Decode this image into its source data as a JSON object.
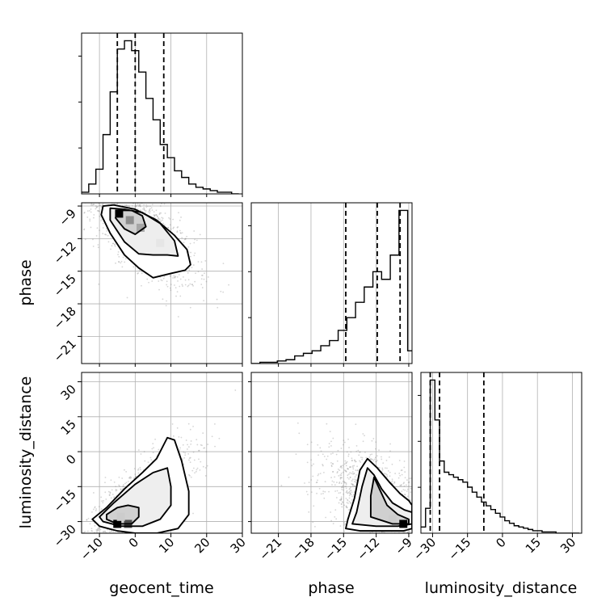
{
  "chart_data": {
    "type": "corner",
    "grid": true,
    "parameters": [
      "geocent_time",
      "phase",
      "luminosity_distance"
    ],
    "xlabels": {
      "geocent_time": "geocent_time",
      "phase": "phase",
      "luminosity_distance": "luminosity_distance"
    },
    "ylabels": {
      "phase": "phase",
      "luminosity_distance": "luminosity_distance"
    },
    "ranges": {
      "geocent_time": [
        -15,
        30
      ],
      "phase": [
        -23.5,
        -8.7
      ],
      "luminosity_distance": [
        -35,
        34
      ]
    },
    "ticks": {
      "geocent_time": {
        "values": [
          -10,
          0,
          10,
          20,
          30
        ],
        "labels": [
          "−10",
          "0",
          "10",
          "20",
          "30"
        ]
      },
      "phase": {
        "values": [
          -21,
          -18,
          -15,
          -12,
          -9
        ],
        "labels": [
          "−21",
          "−18",
          "−15",
          "−12",
          "−9"
        ]
      },
      "luminosity_distance": {
        "values": [
          -30,
          -15,
          0,
          15,
          30
        ],
        "labels": [
          "−30",
          "−15",
          "0",
          "15",
          "30"
        ]
      }
    },
    "quantiles": {
      "geocent_time": [
        -5,
        0,
        8
      ],
      "phase": [
        -14.8,
        -11.9,
        -9.8
      ],
      "luminosity_distance": [
        -31,
        -27,
        -8
      ]
    },
    "histograms": {
      "geocent_time": {
        "edges": [
          -15,
          -13,
          -11,
          -9,
          -7,
          -5,
          -3,
          -1,
          1,
          3,
          5,
          7,
          9,
          11,
          13,
          15,
          17,
          19,
          21,
          23,
          25,
          27,
          29
        ],
        "counts": [
          1,
          6,
          15,
          36,
          62,
          88,
          93,
          87,
          74,
          58,
          45,
          30,
          22,
          14,
          10,
          6,
          4,
          3,
          2,
          1,
          1,
          0
        ]
      },
      "phase": {
        "edges": [
          -23.5,
          -22.7,
          -21.9,
          -21.1,
          -20.3,
          -19.5,
          -18.7,
          -17.9,
          -17.1,
          -16.3,
          -15.5,
          -14.7,
          -13.9,
          -13.1,
          -12.3,
          -11.5,
          -10.7,
          -9.9,
          -9.1,
          -8.7
        ],
        "counts": [
          0,
          1,
          1,
          2,
          3,
          6,
          8,
          10,
          14,
          18,
          26,
          36,
          48,
          60,
          72,
          66,
          85,
          120,
          10
        ]
      },
      "luminosity_distance": {
        "edges": [
          -35,
          -33,
          -31,
          -29,
          -27,
          -25,
          -23,
          -21,
          -19,
          -17,
          -15,
          -13,
          -11,
          -9,
          -7,
          -5,
          -3,
          -1,
          1,
          3,
          5,
          7,
          9,
          11,
          13,
          15,
          17,
          19,
          21,
          23,
          25,
          27,
          29,
          31,
          33
        ],
        "counts": [
          5,
          20,
          123,
          91,
          58,
          49,
          47,
          45,
          43,
          41,
          37,
          33,
          29,
          25,
          22,
          19,
          16,
          13,
          10,
          8,
          6,
          5,
          4,
          3,
          2,
          2,
          1,
          1,
          1,
          0,
          0,
          0,
          0,
          0
        ]
      }
    },
    "contours": {
      "phase_vs_geocent_time": [
        [
          [
            -9,
            -9.0
          ],
          [
            -6,
            -8.9
          ],
          [
            0,
            -9.3
          ],
          [
            6,
            -10.3
          ],
          [
            11,
            -11.7
          ],
          [
            14.5,
            -13.0
          ],
          [
            15.5,
            -14.4
          ],
          [
            14.0,
            -14.9
          ],
          [
            10,
            -15.2
          ],
          [
            5,
            -15.6
          ],
          [
            1,
            -14.7
          ],
          [
            -3,
            -13.5
          ],
          [
            -7,
            -11.5
          ],
          [
            -9.5,
            -9.8
          ],
          [
            -9,
            -9.0
          ]
        ],
        [
          [
            -7,
            -9.2
          ],
          [
            -3,
            -9.3
          ],
          [
            2,
            -9.6
          ],
          [
            7,
            -10.6
          ],
          [
            11,
            -12.2
          ],
          [
            12.0,
            -13.6
          ],
          [
            9,
            -13.5
          ],
          [
            5,
            -13.5
          ],
          [
            1,
            -13.4
          ],
          [
            -3,
            -12.3
          ],
          [
            -7,
            -10.3
          ],
          [
            -7,
            -9.2
          ]
        ],
        [
          [
            -5,
            -9.4
          ],
          [
            -1,
            -9.4
          ],
          [
            2,
            -9.9
          ],
          [
            3,
            -10.9
          ],
          [
            0,
            -11.6
          ],
          [
            -3,
            -11.1
          ],
          [
            -5.5,
            -10.1
          ],
          [
            -5,
            -9.4
          ]
        ]
      ],
      "luminosity_distance_vs_geocent_time": [
        [
          [
            -12,
            -29
          ],
          [
            -8,
            -24
          ],
          [
            -3,
            -16
          ],
          [
            2,
            -9
          ],
          [
            6,
            -3
          ],
          [
            9,
            6
          ],
          [
            11,
            5
          ],
          [
            13,
            -4
          ],
          [
            15,
            -17
          ],
          [
            15,
            -27
          ],
          [
            12,
            -33
          ],
          [
            6,
            -35
          ],
          [
            0,
            -35
          ],
          [
            -5,
            -34
          ],
          [
            -10,
            -32
          ],
          [
            -12,
            -29
          ]
        ],
        [
          [
            -10,
            -28
          ],
          [
            -6,
            -22
          ],
          [
            0,
            -14
          ],
          [
            5,
            -9
          ],
          [
            9,
            -7
          ],
          [
            10,
            -15
          ],
          [
            10,
            -23
          ],
          [
            7,
            -29
          ],
          [
            2,
            -32
          ],
          [
            -4,
            -32
          ],
          [
            -9,
            -30
          ],
          [
            -10,
            -28
          ]
        ],
        [
          [
            -8,
            -27
          ],
          [
            -5,
            -24
          ],
          [
            -2,
            -23
          ],
          [
            1,
            -24
          ],
          [
            1,
            -28
          ],
          [
            -1,
            -31
          ],
          [
            -5,
            -31
          ],
          [
            -8,
            -29
          ],
          [
            -8,
            -27
          ]
        ]
      ],
      "luminosity_distance_vs_phase": [
        [
          [
            -14.8,
            -33
          ],
          [
            -14.6,
            -29
          ],
          [
            -14.0,
            -20
          ],
          [
            -13.5,
            -8
          ],
          [
            -12.8,
            -3
          ],
          [
            -11.9,
            -7
          ],
          [
            -10.8,
            -13
          ],
          [
            -9.8,
            -18
          ],
          [
            -9.0,
            -21
          ],
          [
            -8.7,
            -23
          ],
          [
            -8.7,
            -33
          ],
          [
            -9.5,
            -34
          ],
          [
            -11.5,
            -34
          ],
          [
            -13.5,
            -34
          ],
          [
            -14.8,
            -33
          ]
        ],
        [
          [
            -14.2,
            -31
          ],
          [
            -13.8,
            -26
          ],
          [
            -13.3,
            -15
          ],
          [
            -12.8,
            -7
          ],
          [
            -12.2,
            -10
          ],
          [
            -11.5,
            -16
          ],
          [
            -10.5,
            -22
          ],
          [
            -9.4,
            -25
          ],
          [
            -8.7,
            -26
          ],
          [
            -8.7,
            -31
          ],
          [
            -10,
            -32
          ],
          [
            -12,
            -32
          ],
          [
            -14.2,
            -31
          ]
        ],
        [
          [
            -12.5,
            -28
          ],
          [
            -12.5,
            -19
          ],
          [
            -12.2,
            -11
          ],
          [
            -11.6,
            -17
          ],
          [
            -11.0,
            -23
          ],
          [
            -10.0,
            -27
          ],
          [
            -9.0,
            -29
          ],
          [
            -9.0,
            -31
          ],
          [
            -10.5,
            -31
          ],
          [
            -12.5,
            -28
          ]
        ]
      ]
    },
    "density_peaks": {
      "phase_vs_geocent_time": [
        [
          -4.5,
          -9.7,
          1.0
        ],
        [
          -1.5,
          -10.3,
          0.45
        ],
        [
          1.5,
          -11.0,
          0.35
        ],
        [
          7,
          -12.4,
          0.1
        ]
      ],
      "luminosity_distance_vs_geocent_time": [
        [
          -5,
          -31,
          1.0
        ],
        [
          -2,
          -31,
          0.7
        ],
        [
          -4,
          -28,
          0.2
        ]
      ],
      "luminosity_distance_vs_phase": [
        [
          -9.5,
          -31,
          1.0
        ],
        [
          -10.5,
          -29,
          0.2
        ]
      ]
    },
    "scatter_spread": {
      "phase_vs_geocent_time": {
        "rho": -0.7
      },
      "luminosity_distance_vs_geocent_time": {
        "rho": 0.75
      },
      "luminosity_distance_vs_phase": {
        "rho": -0.55
      }
    }
  }
}
